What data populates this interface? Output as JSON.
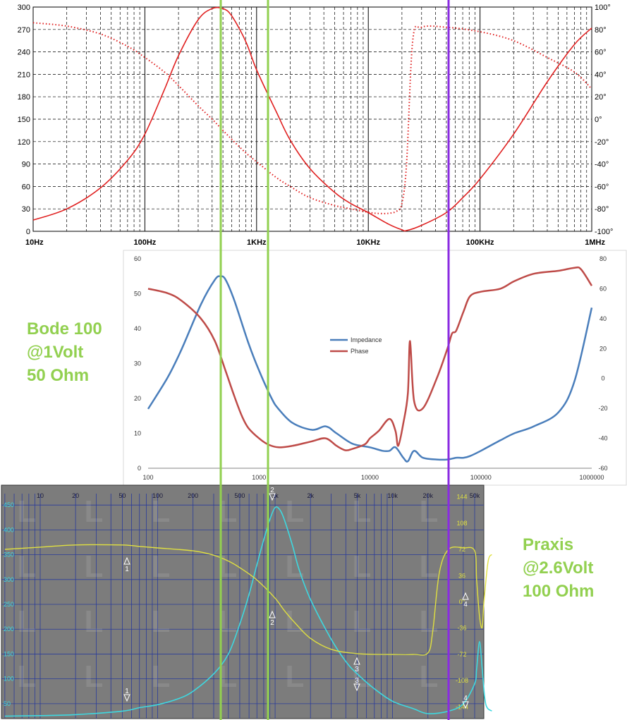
{
  "chart_data": [
    {
      "type": "line",
      "panel": "top",
      "x_scale": "log",
      "x_ticks": [
        "10Hz",
        "100Hz",
        "1KHz",
        "10KHz",
        "100KHz",
        "1MHz"
      ],
      "y_left_ticks": [
        "0",
        "30",
        "60",
        "90",
        "120",
        "150",
        "180",
        "210",
        "240",
        "270",
        "300"
      ],
      "y_right_ticks": [
        "-100°",
        "-80°",
        "-60°",
        "-40°",
        "-20°",
        "0°",
        "20°",
        "40°",
        "60°",
        "80°",
        "100°"
      ],
      "ylim_left": [
        0,
        300
      ],
      "ylim_right": [
        -100,
        100
      ],
      "grid": true,
      "colors": {
        "impedance": "#e02020",
        "phase": "#e02020"
      },
      "series": [
        {
          "style": "solid",
          "axis": "left",
          "x": [
            10,
            20,
            40,
            70,
            100,
            150,
            200,
            300,
            400,
            500,
            600,
            800,
            1000,
            1500,
            2000,
            3000,
            5000,
            7000,
            10000,
            15000,
            20000,
            22000,
            30000,
            50000,
            70000,
            100000,
            200000,
            400000,
            700000,
            1000000
          ],
          "y": [
            15,
            30,
            58,
            95,
            130,
            190,
            235,
            283,
            298,
            298,
            288,
            254,
            216,
            160,
            122,
            84,
            52,
            37,
            25,
            10,
            2,
            1,
            8,
            25,
            45,
            70,
            130,
            200,
            250,
            272
          ]
        },
        {
          "style": "dotted",
          "axis": "right",
          "x": [
            10,
            20,
            40,
            70,
            100,
            150,
            200,
            300,
            400,
            500,
            600,
            800,
            1000,
            1500,
            2000,
            3000,
            5000,
            7000,
            10000,
            12000,
            15000,
            18000,
            20000,
            22000,
            25000,
            30000,
            50000,
            100000,
            200000,
            400000,
            700000,
            1000000
          ],
          "y": [
            86,
            83,
            76,
            65,
            55,
            42,
            30,
            12,
            0,
            -10,
            -18,
            -30,
            -38,
            -52,
            -60,
            -70,
            -77,
            -80,
            -83,
            -84,
            -84,
            -82,
            -75,
            -40,
            70,
            82,
            82,
            78,
            70,
            55,
            42,
            27
          ]
        }
      ]
    },
    {
      "type": "line",
      "panel": "middle",
      "x_scale": "log",
      "x_ticks": [
        "100",
        "1000",
        "10000",
        "100000",
        "1000000"
      ],
      "y_left_ticks": [
        "0",
        "10",
        "20",
        "30",
        "40",
        "50",
        "60"
      ],
      "y_right_ticks": [
        "-60",
        "-40",
        "-20",
        "0",
        "20",
        "40",
        "60",
        "80"
      ],
      "ylim_left": [
        0,
        60
      ],
      "ylim_right": [
        -60,
        80
      ],
      "grid": false,
      "legend": [
        "Impedance",
        "Phase"
      ],
      "colors": {
        "Impedance": "#4a7ebb",
        "Phase": "#be4b48"
      },
      "series": [
        {
          "name": "Impedance",
          "axis": "left",
          "x": [
            100,
            150,
            200,
            300,
            400,
            450,
            500,
            600,
            800,
            1000,
            1300,
            1500,
            2000,
            3000,
            4000,
            5000,
            7000,
            10000,
            13000,
            15000,
            17000,
            20000,
            22000,
            25000,
            30000,
            40000,
            50000,
            60000,
            70000,
            80000,
            100000,
            150000,
            200000,
            300000,
            500000,
            700000,
            1000000
          ],
          "y": [
            17,
            26,
            34,
            47,
            54,
            55,
            54,
            48,
            36,
            28,
            20,
            17,
            13,
            11,
            12,
            10,
            7,
            6,
            5,
            5,
            6,
            3,
            2,
            5,
            3,
            2.5,
            2.5,
            3,
            3,
            3.5,
            5,
            8,
            10,
            12,
            16,
            25,
            46
          ]
        },
        {
          "name": "Phase",
          "axis": "right",
          "x": [
            100,
            150,
            200,
            300,
            400,
            500,
            600,
            700,
            800,
            1000,
            1200,
            1500,
            2000,
            3000,
            4000,
            5000,
            6000,
            7000,
            9000,
            10000,
            12000,
            15000,
            17000,
            18000,
            20000,
            22000,
            23000,
            25000,
            30000,
            40000,
            50000,
            55000,
            60000,
            70000,
            80000,
            100000,
            150000,
            200000,
            300000,
            500000,
            700000,
            800000,
            1000000
          ],
          "y": [
            60,
            57,
            52,
            40,
            25,
            5,
            -12,
            -25,
            -33,
            -40,
            -44,
            -46,
            -45,
            -42,
            -40,
            -45,
            -48,
            -47,
            -44,
            -40,
            -35,
            -27,
            -35,
            -45,
            -30,
            -10,
            25,
            -15,
            -20,
            0,
            20,
            30,
            32,
            45,
            55,
            58,
            60,
            65,
            70,
            72,
            74,
            73,
            62
          ]
        }
      ]
    },
    {
      "type": "line",
      "panel": "bottom",
      "x_scale": "log",
      "x_ticks": [
        "10",
        "20",
        "50",
        "100",
        "200",
        "500",
        "1k",
        "2k",
        "5k",
        "10k",
        "20k",
        "50k"
      ],
      "y_left_ticks": [
        "50",
        "100",
        "150",
        "200",
        "250",
        "300",
        "350",
        "400",
        "450"
      ],
      "y_right_ticks": [
        "-144",
        "-108",
        "-72",
        "-36",
        "0°",
        "36",
        "72",
        "108",
        "144"
      ],
      "ylim_left": [
        20,
        490
      ],
      "ylim_right": [
        -160,
        160
      ],
      "grid": true,
      "colors": {
        "impedance": "#3ed8e0",
        "phase": "#e0e040",
        "background": "#7c7c7c"
      },
      "series": [
        {
          "axis": "left",
          "x": [
            5,
            10,
            20,
            50,
            70,
            100,
            150,
            200,
            300,
            400,
            500,
            600,
            700,
            800,
            900,
            1000,
            1100,
            1200,
            1400,
            1600,
            2000,
            3000,
            4000,
            5000,
            7000,
            10000,
            15000,
            20000,
            30000,
            40000,
            50000,
            52000,
            55000,
            58000,
            62000,
            70000
          ],
          "y": [
            25,
            26,
            28,
            35,
            42,
            48,
            60,
            75,
            110,
            150,
            210,
            270,
            330,
            380,
            420,
            445,
            440,
            420,
            370,
            320,
            260,
            180,
            135,
            110,
            80,
            55,
            40,
            30,
            35,
            50,
            90,
            120,
            175,
            120,
            50,
            35
          ]
        },
        {
          "axis": "right",
          "x": [
            5,
            10,
            20,
            50,
            70,
            100,
            200,
            300,
            400,
            500,
            700,
            1000,
            1200,
            1500,
            2000,
            3000,
            5000,
            10000,
            15000,
            20000,
            22000,
            25000,
            30000,
            40000,
            50000,
            52000,
            55000,
            58000,
            60000,
            65000,
            70000
          ],
          "y": [
            72,
            75,
            78,
            78,
            76,
            74,
            70,
            64,
            56,
            47,
            30,
            5,
            -12,
            -30,
            -50,
            -65,
            -71,
            -72,
            -72,
            -70,
            -40,
            40,
            72,
            74,
            70,
            30,
            -20,
            -35,
            0,
            55,
            65
          ]
        }
      ]
    }
  ],
  "markers": {
    "bottom_arrows": [
      "1",
      "1",
      "2",
      "2",
      "3",
      "3",
      "4",
      "4"
    ],
    "vertical_lines_color_green": "#92d050",
    "vertical_lines_color_purple": "#8a2be2"
  },
  "labels": {
    "bode": [
      "Bode 100",
      "@1Volt",
      "50 Ohm"
    ],
    "praxis": [
      "Praxis",
      "@2.6Volt",
      "100 Ohm"
    ]
  }
}
